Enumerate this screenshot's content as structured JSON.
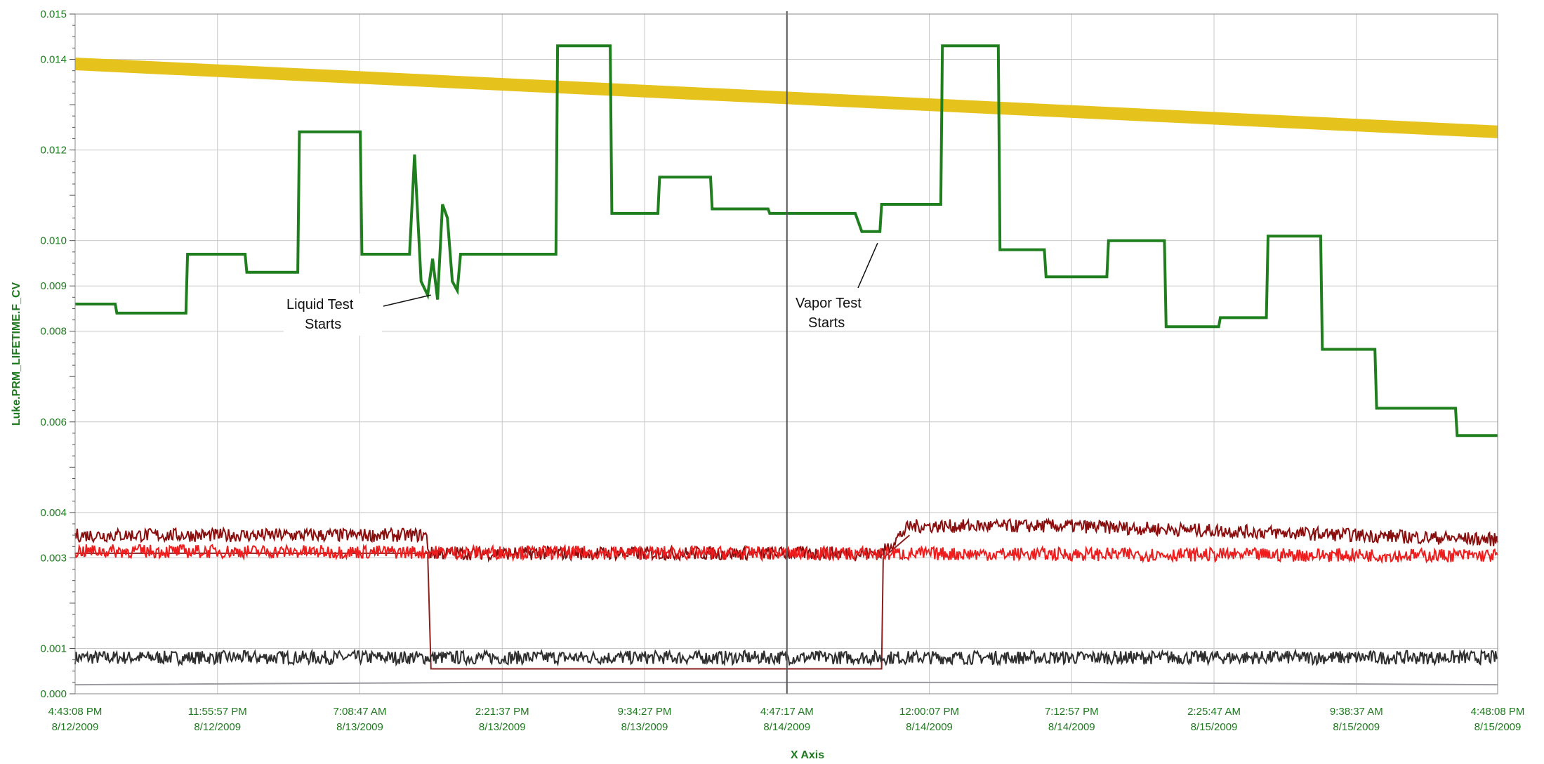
{
  "chart_data": {
    "type": "line",
    "xlabel": "X Axis",
    "ylabel": "Luke.PRM_LIFETIME.F_CV",
    "ylim": [
      0,
      0.015
    ],
    "yticks": [
      "0.015",
      "0.014",
      "0.012",
      "0.010",
      "0.009",
      "0.008",
      "0.006",
      "0.004",
      "0.003",
      "0.001",
      "0.000"
    ],
    "ytick_values": [
      0.015,
      0.014,
      0.012,
      0.01,
      0.009,
      0.008,
      0.006,
      0.004,
      0.003,
      0.001,
      0.0
    ],
    "xlim": [
      "8/12/2009 4:43:08 PM",
      "8/15/2009 4:48:08 PM"
    ],
    "xticks": [
      {
        "time": "4:43:08 PM",
        "date": "8/12/2009"
      },
      {
        "time": "11:55:57 PM",
        "date": "8/12/2009"
      },
      {
        "time": "7:08:47 AM",
        "date": "8/13/2009"
      },
      {
        "time": "2:21:37 PM",
        "date": "8/13/2009"
      },
      {
        "time": "9:34:27 PM",
        "date": "8/13/2009"
      },
      {
        "time": "4:47:17 AM",
        "date": "8/14/2009"
      },
      {
        "time": "12:00:07 PM",
        "date": "8/14/2009"
      },
      {
        "time": "7:12:57 PM",
        "date": "8/14/2009"
      },
      {
        "time": "2:25:47 AM",
        "date": "8/15/2009"
      },
      {
        "time": "9:38:37 AM",
        "date": "8/15/2009"
      },
      {
        "time": "4:48:08 PM",
        "date": "8/15/2009"
      }
    ],
    "grid": true,
    "cursor_time": "8/14/2009 4:47:17 AM",
    "annotations": [
      {
        "lines": [
          "Liquid Test",
          "Starts"
        ],
        "time": "8/13/2009 10:45 AM",
        "value": 0.0088
      },
      {
        "lines": [
          "Vapor Test",
          "Starts"
        ],
        "time": "8/14/2009 9:40 AM",
        "value": 0.0101
      }
    ],
    "series": [
      {
        "color": "#e6c21c",
        "style": "thick-band",
        "x": [
          "8/12/2009 4:43:08 PM",
          "8/15/2009 4:48:08 PM"
        ],
        "y": [
          0.0139,
          0.0124
        ]
      },
      {
        "color": "#1f7f1f",
        "style": "step",
        "x": [
          "8/12/2009 4:43:08 PM",
          "8/12/2009 6:45 PM",
          "8/12/2009 6:50 PM",
          "8/12/2009 10:20 PM",
          "8/12/2009 10:25 PM",
          "8/13/2009 1:20 AM",
          "8/13/2009 1:25 AM",
          "8/13/2009 4:00 AM",
          "8/13/2009 4:05 AM",
          "8/13/2009 7:10 AM",
          "8/13/2009 7:15 AM",
          "8/13/2009 9:40 AM",
          "8/13/2009 9:55 AM",
          "8/13/2009 10:05 AM",
          "8/13/2009 10:15 AM",
          "8/13/2009 10:35 AM",
          "8/13/2009 10:50 AM",
          "8/13/2009 11:05 AM",
          "8/13/2009 11:20 AM",
          "8/13/2009 11:35 AM",
          "8/13/2009 11:50 AM",
          "8/13/2009 12:05 PM",
          "8/13/2009 12:15 PM",
          "8/13/2009 12:35 PM",
          "8/13/2009 1:00 PM",
          "8/13/2009 1:15 PM",
          "8/13/2009 1:40 PM",
          "8/13/2009 2:00 PM",
          "8/13/2009 2:15 PM",
          "8/13/2009 2:20 PM",
          "8/13/2009 5:05 PM",
          "8/13/2009 5:10 PM",
          "8/13/2009 7:50 PM",
          "8/13/2009 7:55 PM",
          "8/13/2009 10:15 PM",
          "8/13/2009 10:20 PM",
          "8/14/2009 12:55 AM",
          "8/14/2009 1:00 AM",
          "8/14/2009 3:50 AM",
          "8/14/2009 3:55 AM",
          "8/14/2009 8:15 AM",
          "8/14/2009 8:35 AM",
          "8/14/2009 9:30 AM",
          "8/14/2009 9:35 AM",
          "8/14/2009 10:15 AM",
          "8/14/2009 10:20 AM",
          "8/14/2009 12:35 PM",
          "8/14/2009 12:40 PM",
          "8/14/2009 1:10 PM",
          "8/14/2009 3:30 PM",
          "8/14/2009 3:35 PM",
          "8/14/2009 5:50 PM",
          "8/14/2009 5:55 PM",
          "8/14/2009 9:00 PM",
          "8/14/2009 9:05 PM",
          "8/14/2009 11:55 PM",
          "8/15/2009 12:00 AM",
          "8/15/2009 2:40 AM",
          "8/15/2009 2:45 AM",
          "8/15/2009 5:05 AM",
          "8/15/2009 5:10 AM",
          "8/15/2009 7:50 AM",
          "8/15/2009 7:55 AM",
          "8/15/2009 10:35 AM",
          "8/15/2009 10:40 AM",
          "8/15/2009 12:20 PM",
          "8/15/2009 12:25 PM",
          "8/15/2009 2:40 PM",
          "8/15/2009 2:45 PM",
          "8/15/2009 4:48:08 PM"
        ],
        "y": [
          0.0086,
          0.0086,
          0.0084,
          0.0084,
          0.0097,
          0.0097,
          0.0093,
          0.0093,
          0.0124,
          0.0124,
          0.0097,
          0.0097,
          0.0119,
          0.0105,
          0.0091,
          0.0088,
          0.0096,
          0.0087,
          0.0108,
          0.0105,
          0.0091,
          0.0089,
          0.0097,
          0.0097,
          0.0097,
          0.0097,
          0.0097,
          0.0097,
          0.0097,
          0.0097,
          0.0097,
          0.0143,
          0.0143,
          0.0106,
          0.0106,
          0.0114,
          0.0114,
          0.0107,
          0.0107,
          0.0106,
          0.0106,
          0.0102,
          0.0102,
          0.0108,
          0.0108,
          0.0108,
          0.0108,
          0.0143,
          0.0143,
          0.0143,
          0.0098,
          0.0098,
          0.0092,
          0.0092,
          0.01,
          0.01,
          0.0081,
          0.0081,
          0.0083,
          0.0083,
          0.0101,
          0.0101,
          0.0076,
          0.0076,
          0.0063,
          0.0063,
          0.0063,
          0.0063,
          0.0057,
          0.0057
        ]
      },
      {
        "color": "#8b0e0e",
        "style": "noise-band",
        "x": [
          "8/12/2009 4:43:08 PM",
          "8/13/2009 10:30 AM",
          "8/13/2009 10:40 AM",
          "8/14/2009 9:35 AM",
          "8/14/2009 11:00 AM",
          "8/14/2009 7:12:57 PM",
          "8/15/2009 4:48:08 PM"
        ],
        "y": [
          0.0035,
          0.0035,
          0.0031,
          0.0031,
          0.0037,
          0.0037,
          0.0034
        ],
        "amplitude": 0.0003
      },
      {
        "color": "#ee1c1c",
        "style": "noise-band",
        "x": [
          "8/12/2009 4:43:08 PM",
          "8/15/2009 4:48:08 PM"
        ],
        "y": [
          0.00315,
          0.00305
        ],
        "amplitude": 0.0003
      },
      {
        "color": "#2e2e2e",
        "style": "noise-band",
        "x": [
          "8/12/2009 4:43:08 PM",
          "8/15/2009 4:48:08 PM"
        ],
        "y": [
          0.0008,
          0.0008
        ],
        "amplitude": 0.0003
      },
      {
        "color": "#8b2020",
        "style": "line",
        "x": [
          "8/12/2009 4:43:08 PM",
          "8/13/2009 10:35 AM",
          "8/13/2009 10:45 AM",
          "8/14/2009 9:35 AM",
          "8/14/2009 9:40 AM",
          "8/14/2009 11:00 AM"
        ],
        "y": [
          0.0031,
          0.0031,
          0.00055,
          0.00055,
          0.003,
          0.0035
        ]
      },
      {
        "color": "#9a9aa0",
        "style": "line",
        "x": [
          "8/12/2009 4:43:08 PM",
          "8/13/2009 1:00 PM",
          "8/14/2009 7:12:57 PM",
          "8/15/2009 4:48:08 PM"
        ],
        "y": [
          0.0002,
          0.00025,
          0.00025,
          0.0002
        ]
      },
      {
        "color": "#7a1fa0",
        "style": "line",
        "x": [
          "8/12/2009 4:43:08 PM",
          "8/15/2009 4:48:08 PM"
        ],
        "y": [
          0.0,
          0.0
        ]
      }
    ]
  }
}
